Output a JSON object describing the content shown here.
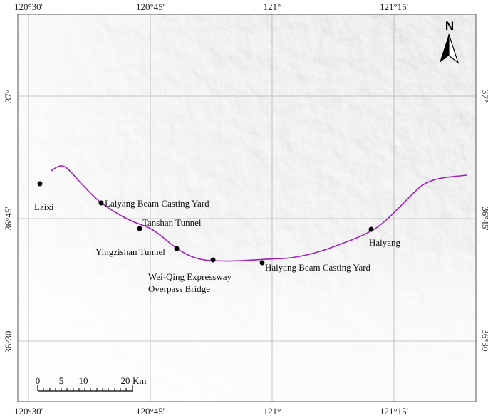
{
  "map": {
    "coords": {
      "top": [
        "120°30'",
        "120°45'",
        "121°",
        "121°15'"
      ],
      "bottom": [
        "120°30'",
        "120°45'",
        "121°",
        "121°15'"
      ],
      "left": [
        "37°",
        "36°45'",
        "36°30'"
      ],
      "right": [
        "37°",
        "36°45'",
        "36°30'"
      ]
    },
    "places": [
      {
        "id": "laixi",
        "label": "Laixi"
      },
      {
        "id": "laiyang-yard",
        "label": "Laiyang Beam Casting Yard"
      },
      {
        "id": "tanshan",
        "label": "Tanshan Tunnel"
      },
      {
        "id": "yingzishan",
        "label": "Yingzishan Tunnel"
      },
      {
        "id": "weiqing-1",
        "label": "Wei-Qing Expressway"
      },
      {
        "id": "weiqing-2",
        "label": "Overpass Bridge"
      },
      {
        "id": "haiyang-yard",
        "label": "Haiyang Beam Casting Yard"
      },
      {
        "id": "haiyang",
        "label": "Haiyang"
      }
    ],
    "north_label": "N",
    "scale_bar": {
      "ticks": [
        "0",
        "5",
        "10",
        "20"
      ],
      "unit": "Km"
    },
    "route_color": "#a020c0"
  }
}
